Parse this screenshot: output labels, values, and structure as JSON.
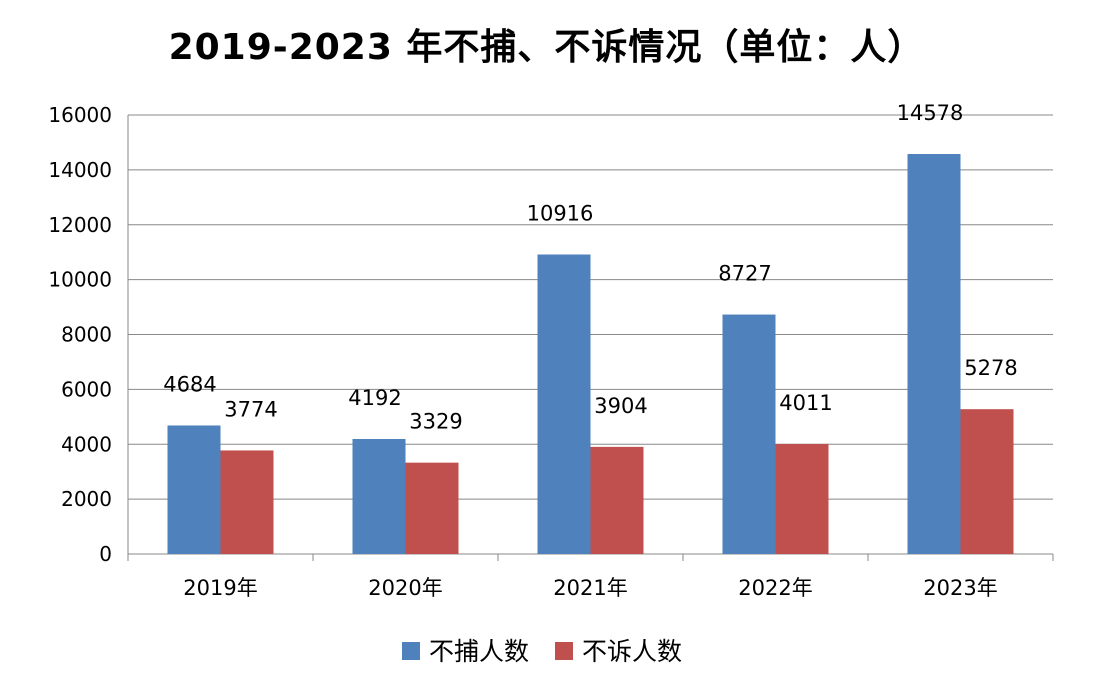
{
  "chart_data": {
    "type": "bar",
    "title": "2019-2023 年不捕、不诉情况（单位：人）",
    "categories": [
      "2019年",
      "2020年",
      "2021年",
      "2022年",
      "2023年"
    ],
    "series": [
      {
        "name": "不捕人数",
        "values": [
          4684,
          4192,
          10916,
          8727,
          14578
        ],
        "color": "#4F81BD"
      },
      {
        "name": "不诉人数",
        "values": [
          3774,
          3329,
          3904,
          4011,
          5278
        ],
        "color": "#C0504D"
      }
    ],
    "y_ticks": [
      0,
      2000,
      4000,
      6000,
      8000,
      10000,
      12000,
      14000,
      16000
    ],
    "ylim": [
      0,
      16000
    ],
    "xlabel": "",
    "ylabel": "",
    "grid": true,
    "legend_position": "bottom",
    "gridline_color": "#888888",
    "axis_color": "#888888"
  }
}
